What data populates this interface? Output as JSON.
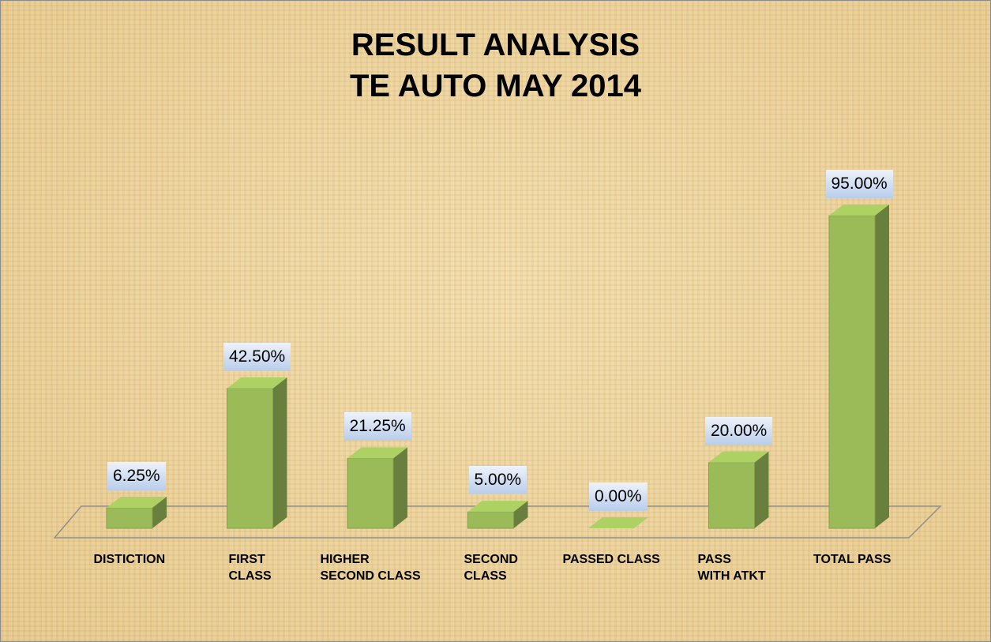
{
  "chart_data": {
    "type": "bar3d",
    "title": "RESULT ANALYSIS\nTE AUTO MAY 2014",
    "categories": [
      "DISTICTION",
      "FIRST\nCLASS",
      "HIGHER\nSECOND CLASS",
      "SECOND\nCLASS",
      "PASSED CLASS",
      "PASS\nWITH ATKT",
      "TOTAL PASS"
    ],
    "values": [
      6.25,
      42.5,
      21.25,
      5,
      0,
      20,
      95
    ],
    "value_labels": [
      "6.25%",
      "42.50%",
      "21.25%",
      "5.00%",
      "0.00%",
      "20.00%",
      "95.00%"
    ],
    "color": "#9bbb59"
  }
}
